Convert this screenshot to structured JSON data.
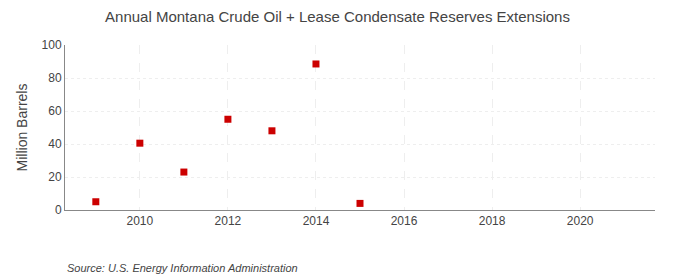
{
  "chart_data": {
    "type": "scatter",
    "title": "Annual Montana Crude Oil + Lease Condensate Reserves Extensions",
    "ylabel": "Million Barrels",
    "annotations": [
      "Source: U.S. Energy Information Administration"
    ],
    "x": [
      2009,
      2010,
      2011,
      2012,
      2013,
      2014,
      2015
    ],
    "values": [
      5.0,
      40.5,
      23.0,
      55.0,
      48.0,
      88.5,
      4.0
    ],
    "color": "#cc0000",
    "marker": "square",
    "xlim": [
      2008.3,
      2021.7
    ],
    "xticks": [
      2010,
      2012,
      2014,
      2016,
      2018,
      2020
    ],
    "ylim": [
      0,
      100
    ],
    "yticks": [
      0,
      20,
      40,
      60,
      80,
      100
    ],
    "grid": true
  }
}
